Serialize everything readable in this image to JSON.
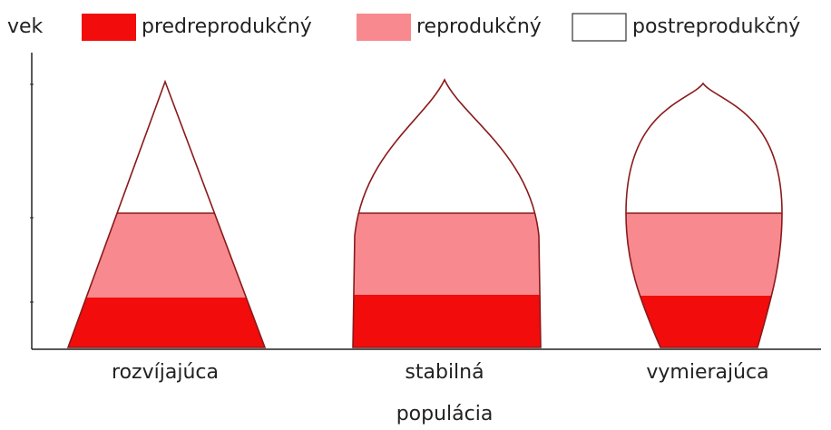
{
  "y_axis_label": "vek",
  "legend": [
    {
      "label": "predreprodukčný"
    },
    {
      "label": "reprodukčný"
    },
    {
      "label": "postreprodukčný"
    }
  ],
  "pyramids": [
    {
      "label": "rozvíjajúca"
    },
    {
      "label": "stabilná"
    },
    {
      "label": "vymierajúca"
    }
  ],
  "x_axis_label": "populácia"
}
